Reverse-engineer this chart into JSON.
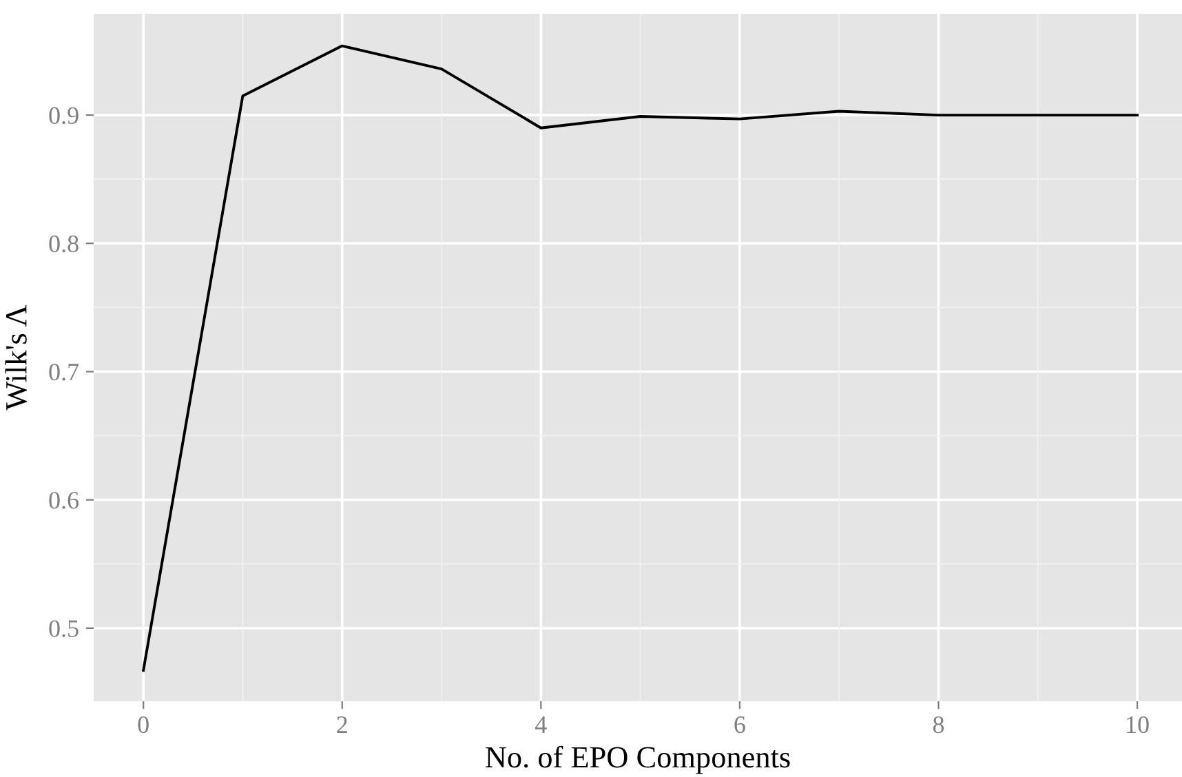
{
  "chart_data": {
    "type": "line",
    "x": [
      0,
      1,
      2,
      3,
      4,
      5,
      6,
      7,
      8,
      9,
      10
    ],
    "series": [
      {
        "color": "#000000",
        "values": [
          0.467,
          0.915,
          0.954,
          0.936,
          0.89,
          0.899,
          0.897,
          0.903,
          0.9,
          0.9,
          0.9
        ]
      }
    ],
    "xlabel": "No. of EPO Components",
    "ylabel": "Wilk's Λ",
    "xlim": [
      -0.5,
      10.45
    ],
    "ylim": [
      0.443,
      0.979
    ],
    "xticks": [
      0,
      2,
      4,
      6,
      8,
      10
    ],
    "yticks": [
      0.5,
      0.6,
      0.7,
      0.8,
      0.9
    ],
    "grid": true,
    "marker": "none",
    "line_style": "solid"
  }
}
